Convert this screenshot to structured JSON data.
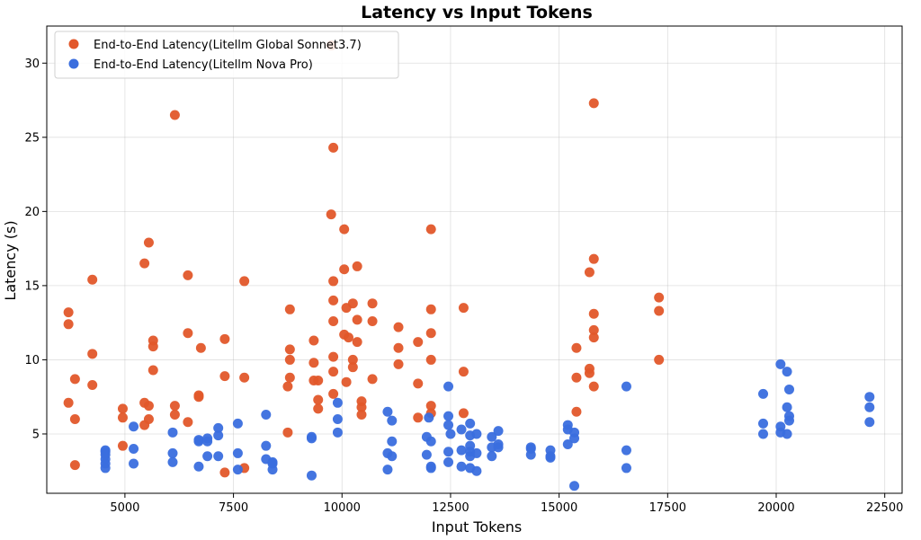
{
  "chart_data": {
    "type": "scatter",
    "title": "Latency vs Input Tokens",
    "xlabel": "Input Tokens",
    "ylabel": "Latency (s)",
    "xlim": [
      3200,
      22900
    ],
    "ylim": [
      1.0,
      32.5
    ],
    "xticks": [
      5000,
      7500,
      10000,
      12500,
      15000,
      17500,
      20000,
      22500
    ],
    "yticks": [
      5,
      10,
      15,
      20,
      25,
      30
    ],
    "grid": true,
    "legend_position": "upper-left",
    "series": [
      {
        "name": "End-to-End Latency(Litellm Global Sonnet3.7)",
        "color": "#e2572a",
        "points": [
          [
            3700,
            13.2
          ],
          [
            3700,
            12.4
          ],
          [
            3700,
            7.1
          ],
          [
            3850,
            8.7
          ],
          [
            3850,
            6.0
          ],
          [
            3850,
            2.9
          ],
          [
            4250,
            15.4
          ],
          [
            4250,
            10.4
          ],
          [
            4250,
            8.3
          ],
          [
            4950,
            6.7
          ],
          [
            4950,
            6.1
          ],
          [
            4950,
            4.2
          ],
          [
            5450,
            16.5
          ],
          [
            5450,
            7.1
          ],
          [
            5450,
            5.6
          ],
          [
            5550,
            17.9
          ],
          [
            5550,
            6.9
          ],
          [
            5550,
            6.0
          ],
          [
            5650,
            11.3
          ],
          [
            5650,
            10.9
          ],
          [
            5650,
            9.3
          ],
          [
            6150,
            26.5
          ],
          [
            6150,
            6.9
          ],
          [
            6150,
            6.3
          ],
          [
            6450,
            15.7
          ],
          [
            6450,
            11.8
          ],
          [
            6450,
            5.8
          ],
          [
            6750,
            10.8
          ],
          [
            6700,
            7.6
          ],
          [
            6700,
            7.5
          ],
          [
            7300,
            11.4
          ],
          [
            7300,
            8.9
          ],
          [
            7300,
            2.4
          ],
          [
            7750,
            15.3
          ],
          [
            7750,
            8.8
          ],
          [
            7750,
            2.7
          ],
          [
            8750,
            8.2
          ],
          [
            8800,
            13.4
          ],
          [
            8800,
            10.7
          ],
          [
            8800,
            10.0
          ],
          [
            8800,
            8.8
          ],
          [
            8750,
            5.1
          ],
          [
            9350,
            11.3
          ],
          [
            9350,
            9.8
          ],
          [
            9350,
            8.6
          ],
          [
            9450,
            8.6
          ],
          [
            9450,
            7.3
          ],
          [
            9450,
            6.7
          ],
          [
            9750,
            31.2
          ],
          [
            9800,
            24.3
          ],
          [
            9750,
            19.8
          ],
          [
            9800,
            15.3
          ],
          [
            9800,
            14.0
          ],
          [
            9800,
            12.6
          ],
          [
            9800,
            10.2
          ],
          [
            9800,
            9.2
          ],
          [
            9800,
            7.7
          ],
          [
            10050,
            18.8
          ],
          [
            10050,
            16.1
          ],
          [
            10100,
            13.5
          ],
          [
            10050,
            11.7
          ],
          [
            10150,
            11.5
          ],
          [
            10100,
            8.5
          ],
          [
            10250,
            13.8
          ],
          [
            10250,
            10.0
          ],
          [
            10250,
            9.5
          ],
          [
            10350,
            16.3
          ],
          [
            10350,
            12.7
          ],
          [
            10350,
            11.2
          ],
          [
            10450,
            7.2
          ],
          [
            10450,
            6.8
          ],
          [
            10450,
            6.3
          ],
          [
            10700,
            13.8
          ],
          [
            10700,
            12.6
          ],
          [
            10700,
            8.7
          ],
          [
            11300,
            12.2
          ],
          [
            11300,
            10.8
          ],
          [
            11300,
            9.7
          ],
          [
            11750,
            11.2
          ],
          [
            11750,
            8.4
          ],
          [
            11750,
            6.1
          ],
          [
            12050,
            18.8
          ],
          [
            12050,
            13.4
          ],
          [
            12050,
            11.8
          ],
          [
            12050,
            10.0
          ],
          [
            12050,
            6.9
          ],
          [
            12050,
            6.4
          ],
          [
            12800,
            13.5
          ],
          [
            12800,
            9.2
          ],
          [
            12800,
            6.4
          ],
          [
            15400,
            10.8
          ],
          [
            15400,
            8.8
          ],
          [
            15400,
            6.5
          ],
          [
            15700,
            15.9
          ],
          [
            15700,
            9.4
          ],
          [
            15700,
            9.1
          ],
          [
            15800,
            27.3
          ],
          [
            15800,
            16.8
          ],
          [
            15800,
            13.1
          ],
          [
            15800,
            12.0
          ],
          [
            15800,
            11.5
          ],
          [
            15800,
            8.2
          ],
          [
            17300,
            14.2
          ],
          [
            17300,
            13.3
          ],
          [
            17300,
            10.0
          ]
        ]
      },
      {
        "name": "End-to-End Latency(Litellm Nova Pro)",
        "color": "#3a6ede",
        "points": [
          [
            4550,
            3.9
          ],
          [
            4550,
            3.8
          ],
          [
            4550,
            3.6
          ],
          [
            4550,
            3.3
          ],
          [
            4550,
            3.0
          ],
          [
            4550,
            2.7
          ],
          [
            5200,
            5.5
          ],
          [
            5200,
            4.0
          ],
          [
            5200,
            3.0
          ],
          [
            6100,
            5.1
          ],
          [
            6100,
            3.7
          ],
          [
            6100,
            3.1
          ],
          [
            6700,
            4.6
          ],
          [
            6700,
            4.5
          ],
          [
            6700,
            2.8
          ],
          [
            6900,
            4.7
          ],
          [
            6900,
            4.5
          ],
          [
            6900,
            3.5
          ],
          [
            7150,
            5.4
          ],
          [
            7150,
            4.9
          ],
          [
            7150,
            3.5
          ],
          [
            7600,
            5.7
          ],
          [
            7600,
            3.7
          ],
          [
            7600,
            2.6
          ],
          [
            8250,
            6.3
          ],
          [
            8250,
            4.2
          ],
          [
            8250,
            3.3
          ],
          [
            8400,
            3.1
          ],
          [
            8400,
            3.0
          ],
          [
            8400,
            2.6
          ],
          [
            9300,
            4.8
          ],
          [
            9300,
            4.7
          ],
          [
            9300,
            2.2
          ],
          [
            9900,
            7.1
          ],
          [
            9900,
            6.0
          ],
          [
            9900,
            5.1
          ],
          [
            11050,
            6.5
          ],
          [
            11050,
            3.7
          ],
          [
            11050,
            2.6
          ],
          [
            11150,
            5.9
          ],
          [
            11150,
            4.5
          ],
          [
            11150,
            3.5
          ],
          [
            12000,
            6.1
          ],
          [
            11950,
            4.8
          ],
          [
            11950,
            3.6
          ],
          [
            12050,
            4.5
          ],
          [
            12050,
            2.8
          ],
          [
            12050,
            2.7
          ],
          [
            12450,
            8.2
          ],
          [
            12450,
            6.2
          ],
          [
            12450,
            5.6
          ],
          [
            12500,
            5.0
          ],
          [
            12450,
            3.8
          ],
          [
            12450,
            3.1
          ],
          [
            12750,
            5.3
          ],
          [
            12750,
            3.9
          ],
          [
            12750,
            2.8
          ],
          [
            12950,
            5.7
          ],
          [
            12950,
            4.9
          ],
          [
            12950,
            4.2
          ],
          [
            12950,
            3.8
          ],
          [
            12950,
            3.5
          ],
          [
            12950,
            2.7
          ],
          [
            13100,
            5.0
          ],
          [
            13100,
            3.7
          ],
          [
            13100,
            2.5
          ],
          [
            13450,
            4.8
          ],
          [
            13450,
            4.1
          ],
          [
            13450,
            3.5
          ],
          [
            13600,
            5.2
          ],
          [
            13600,
            4.3
          ],
          [
            13600,
            4.1
          ],
          [
            14350,
            4.1
          ],
          [
            14350,
            4.0
          ],
          [
            14350,
            3.6
          ],
          [
            14800,
            3.9
          ],
          [
            14800,
            3.5
          ],
          [
            14800,
            3.4
          ],
          [
            15200,
            5.6
          ],
          [
            15200,
            5.3
          ],
          [
            15200,
            4.3
          ],
          [
            15350,
            5.1
          ],
          [
            15350,
            4.7
          ],
          [
            15350,
            1.5
          ],
          [
            16550,
            8.2
          ],
          [
            16550,
            3.9
          ],
          [
            16550,
            2.7
          ],
          [
            19700,
            7.7
          ],
          [
            19700,
            5.7
          ],
          [
            19700,
            5.0
          ],
          [
            20100,
            9.7
          ],
          [
            20100,
            5.5
          ],
          [
            20100,
            5.1
          ],
          [
            20250,
            9.2
          ],
          [
            20250,
            6.8
          ],
          [
            20250,
            5.0
          ],
          [
            20300,
            8.0
          ],
          [
            20300,
            6.2
          ],
          [
            20300,
            5.9
          ],
          [
            22150,
            7.5
          ],
          [
            22150,
            6.8
          ],
          [
            22150,
            5.8
          ]
        ]
      }
    ]
  }
}
